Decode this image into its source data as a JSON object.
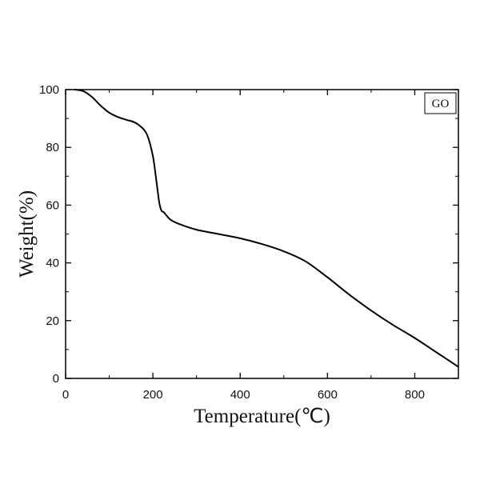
{
  "chart_data": {
    "type": "line",
    "title": "",
    "xlabel": "Temperature(℃)",
    "ylabel": "Weight(%)",
    "xlim": [
      0,
      900
    ],
    "ylim": [
      0,
      100
    ],
    "xticks": [
      0,
      200,
      400,
      600,
      800
    ],
    "yticks": [
      0,
      20,
      40,
      60,
      80,
      100
    ],
    "grid": false,
    "legend_position": "top-right",
    "series": [
      {
        "name": "GO",
        "color": "#000000",
        "x": [
          20,
          40,
          60,
          80,
          100,
          120,
          140,
          160,
          180,
          190,
          200,
          205,
          210,
          215,
          220,
          225,
          240,
          260,
          300,
          350,
          400,
          450,
          500,
          550,
          600,
          650,
          700,
          750,
          800,
          850,
          900
        ],
        "y": [
          100,
          99.5,
          97.5,
          94.5,
          92,
          90.5,
          89.5,
          88.5,
          86,
          83,
          77,
          72,
          66,
          60.5,
          58,
          57.5,
          55,
          53.5,
          51.5,
          50,
          48.5,
          46.5,
          44,
          40.5,
          35,
          29,
          23.5,
          18.5,
          14,
          9,
          4
        ]
      }
    ]
  }
}
